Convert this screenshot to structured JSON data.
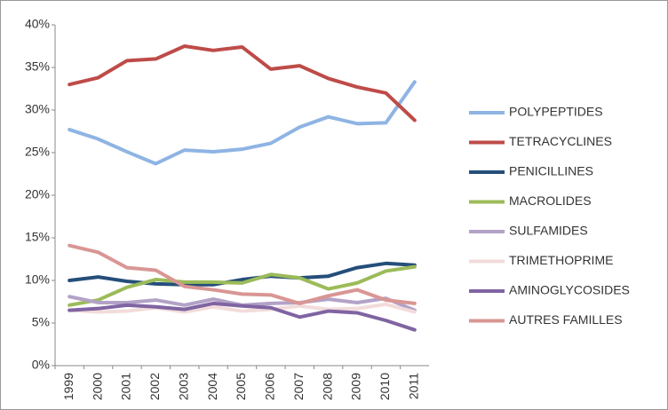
{
  "chart_data": {
    "type": "line",
    "categories": [
      "1999",
      "2000",
      "2001",
      "2002",
      "2003",
      "2004",
      "2005",
      "2006",
      "2007",
      "2008",
      "2009",
      "2010",
      "2011"
    ],
    "ylim": [
      0,
      40
    ],
    "yticks": [
      {
        "value": 0,
        "label": "0%"
      },
      {
        "value": 5,
        "label": "5%"
      },
      {
        "value": 10,
        "label": "10%"
      },
      {
        "value": 15,
        "label": "15%"
      },
      {
        "value": 20,
        "label": "20%"
      },
      {
        "value": 25,
        "label": "25%"
      },
      {
        "value": 30,
        "label": "30%"
      },
      {
        "value": 35,
        "label": "35%"
      },
      {
        "value": 40,
        "label": "40%"
      }
    ],
    "grid": false,
    "legend": "right",
    "series": [
      {
        "name": "POLYPEPTIDES",
        "color": "#8eb4e3",
        "values": [
          27.7,
          26.6,
          25.1,
          23.7,
          25.3,
          25.1,
          25.4,
          26.1,
          28.0,
          29.2,
          28.4,
          28.5,
          33.3
        ]
      },
      {
        "name": "TETRACYCLINES",
        "color": "#be4b48",
        "values": [
          33.0,
          33.8,
          35.8,
          36.0,
          37.5,
          37.0,
          37.4,
          34.8,
          35.2,
          33.7,
          32.7,
          32.0,
          28.8
        ]
      },
      {
        "name": "PENICILLINES",
        "color": "#254e7a",
        "values": [
          10.0,
          10.4,
          9.9,
          9.6,
          9.5,
          9.5,
          10.1,
          10.5,
          10.3,
          10.5,
          11.5,
          12.0,
          11.8
        ]
      },
      {
        "name": "MACROLIDES",
        "color": "#9bbb59",
        "values": [
          7.1,
          7.7,
          9.2,
          10.1,
          9.8,
          9.8,
          9.7,
          10.7,
          10.3,
          9.0,
          9.7,
          11.1,
          11.6
        ]
      },
      {
        "name": "SULFAMIDES",
        "color": "#b3a2c7",
        "values": [
          8.1,
          7.4,
          7.4,
          7.7,
          7.1,
          7.8,
          7.1,
          7.3,
          7.4,
          7.8,
          7.4,
          7.9,
          6.5
        ]
      },
      {
        "name": "TRIMETHOPRIME",
        "color": "#f2dcdb",
        "values": [
          6.5,
          6.3,
          6.4,
          6.8,
          6.3,
          6.9,
          6.4,
          6.6,
          7.0,
          6.6,
          6.7,
          7.2,
          6.3
        ]
      },
      {
        "name": "AMINOGLYCOSIDES",
        "color": "#8064a2",
        "values": [
          6.5,
          6.7,
          7.1,
          6.9,
          6.6,
          7.3,
          7.0,
          6.8,
          5.7,
          6.4,
          6.2,
          5.3,
          4.2
        ]
      },
      {
        "name": "AUTRES FAMILLES",
        "color": "#d99694",
        "values": [
          14.1,
          13.3,
          11.5,
          11.2,
          9.3,
          8.9,
          8.4,
          8.3,
          7.3,
          8.2,
          8.9,
          7.7,
          7.3
        ]
      }
    ]
  }
}
